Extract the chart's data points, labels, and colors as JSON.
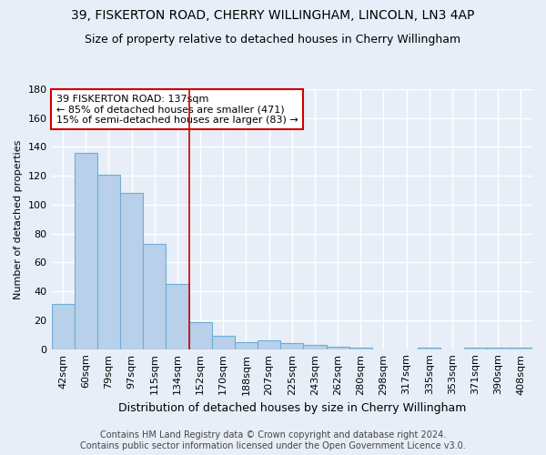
{
  "title_line1": "39, FISKERTON ROAD, CHERRY WILLINGHAM, LINCOLN, LN3 4AP",
  "title_line2": "Size of property relative to detached houses in Cherry Willingham",
  "xlabel": "Distribution of detached houses by size in Cherry Willingham",
  "ylabel": "Number of detached properties",
  "footer_line1": "Contains HM Land Registry data © Crown copyright and database right 2024.",
  "footer_line2": "Contains public sector information licensed under the Open Government Licence v3.0.",
  "categories": [
    "42sqm",
    "60sqm",
    "79sqm",
    "97sqm",
    "115sqm",
    "134sqm",
    "152sqm",
    "170sqm",
    "188sqm",
    "207sqm",
    "225sqm",
    "243sqm",
    "262sqm",
    "280sqm",
    "298sqm",
    "317sqm",
    "335sqm",
    "353sqm",
    "371sqm",
    "390sqm",
    "408sqm"
  ],
  "values": [
    31,
    136,
    121,
    108,
    73,
    45,
    19,
    9,
    5,
    6,
    4,
    3,
    2,
    1,
    0,
    0,
    1,
    0,
    1,
    1,
    1
  ],
  "bar_color": "#b8d0ea",
  "bar_edge_color": "#6baed6",
  "vline_color": "#cc0000",
  "vline_position": 5,
  "annotation_line1": "39 FISKERTON ROAD: 137sqm",
  "annotation_line2": "← 85% of detached houses are smaller (471)",
  "annotation_line3": "15% of semi-detached houses are larger (83) →",
  "ylim": [
    0,
    180
  ],
  "yticks": [
    0,
    20,
    40,
    60,
    80,
    100,
    120,
    140,
    160,
    180
  ],
  "bg_color": "#e8eef8",
  "grid_color": "#ffffff",
  "annotation_box_color": "#ffffff",
  "annotation_box_edge": "#cc0000",
  "title_fontsize": 10,
  "subtitle_fontsize": 9,
  "ylabel_fontsize": 8,
  "xlabel_fontsize": 9,
  "tick_fontsize": 8,
  "footer_fontsize": 7
}
